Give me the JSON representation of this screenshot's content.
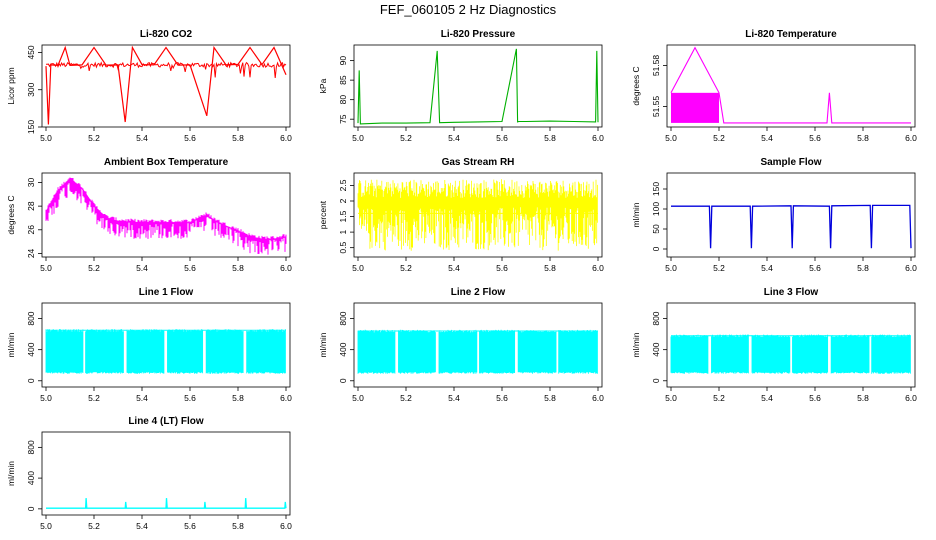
{
  "figure": {
    "title": "FEF_060105  2 Hz Diagnostics"
  },
  "colors": {
    "red": "#ff0000",
    "green": "#00b000",
    "magenta": "#ff00ff",
    "yellow": "#ffff00",
    "blue": "#0000dd",
    "cyan": "#00ffff",
    "axis": "#000000"
  },
  "chart_data": [
    {
      "type": "line",
      "title": "Li-820 CO2",
      "xlabel": "",
      "ylabel": "Licor ppm",
      "color": "#ff0000",
      "xlim": [
        5.0,
        6.0
      ],
      "ylim": [
        150,
        480
      ],
      "xticks": [
        5.0,
        5.2,
        5.4,
        5.6,
        5.8,
        6.0
      ],
      "yticks": [
        150,
        300,
        450
      ],
      "x": [
        5.0,
        5.01,
        5.02,
        5.05,
        5.08,
        5.1,
        5.15,
        5.2,
        5.25,
        5.3,
        5.33,
        5.36,
        5.4,
        5.45,
        5.5,
        5.55,
        5.6,
        5.67,
        5.7,
        5.75,
        5.8,
        5.85,
        5.9,
        5.95,
        6.0
      ],
      "y": [
        395,
        160,
        400,
        398,
        470,
        398,
        400,
        470,
        399,
        400,
        170,
        470,
        401,
        400,
        470,
        399,
        400,
        195,
        470,
        400,
        402,
        470,
        401,
        470,
        360
      ]
    },
    {
      "type": "line",
      "title": "Li-820 Pressure",
      "xlabel": "",
      "ylabel": "kPa",
      "color": "#00b000",
      "xlim": [
        5.0,
        6.0
      ],
      "ylim": [
        73,
        94
      ],
      "xticks": [
        5.0,
        5.2,
        5.4,
        5.6,
        5.8,
        6.0
      ],
      "yticks": [
        75,
        80,
        85,
        90
      ],
      "x": [
        5.0,
        5.005,
        5.01,
        5.1,
        5.2,
        5.3,
        5.33,
        5.34,
        5.4,
        5.5,
        5.6,
        5.66,
        5.665,
        5.67,
        5.7,
        5.8,
        5.9,
        5.99,
        5.995,
        6.0
      ],
      "y": [
        74,
        87.5,
        73.8,
        74.0,
        74.0,
        74.1,
        92.5,
        74.1,
        74.2,
        74.3,
        74.4,
        93.0,
        74.3,
        74.4,
        74.4,
        74.5,
        74.4,
        74.3,
        92.5,
        74.2
      ]
    },
    {
      "type": "line",
      "title": "Li-820 Temperature",
      "xlabel": "",
      "ylabel": "degrees C",
      "color": "#ff00ff",
      "xlim": [
        5.0,
        6.0
      ],
      "ylim": [
        51.535,
        51.595
      ],
      "xticks": [
        5.0,
        5.2,
        5.4,
        5.6,
        5.8,
        6.0
      ],
      "yticks": [
        51.55,
        51.58
      ],
      "x": [
        5.0,
        5.1,
        5.2,
        5.22,
        5.4,
        5.65,
        5.66,
        5.67,
        5.8,
        6.0
      ],
      "y": [
        51.56,
        51.593,
        51.56,
        51.538,
        51.538,
        51.538,
        51.56,
        51.538,
        51.538,
        51.538
      ]
    },
    {
      "type": "line",
      "title": "Ambient Box Temperature",
      "xlabel": "",
      "ylabel": "degrees C",
      "color": "#ff00ff",
      "xlim": [
        5.0,
        6.0
      ],
      "ylim": [
        23.7,
        30.8
      ],
      "xticks": [
        5.0,
        5.2,
        5.4,
        5.6,
        5.8,
        6.0
      ],
      "yticks": [
        24,
        26,
        28,
        30
      ],
      "x": [
        5.0,
        5.05,
        5.1,
        5.15,
        5.2,
        5.25,
        5.3,
        5.4,
        5.5,
        5.6,
        5.65,
        5.67,
        5.7,
        5.75,
        5.8,
        5.85,
        5.9,
        5.95,
        6.0
      ],
      "y": [
        27.5,
        29.3,
        30.3,
        29.5,
        28.0,
        27.0,
        26.7,
        26.6,
        26.6,
        26.6,
        27.1,
        27.2,
        26.8,
        26.3,
        25.9,
        25.4,
        25.2,
        25.2,
        25.4
      ]
    },
    {
      "type": "line",
      "title": "Gas Stream RH",
      "xlabel": "",
      "ylabel": "percent",
      "color": "#ffff00",
      "xlim": [
        5.0,
        6.0
      ],
      "ylim": [
        0.2,
        2.9
      ],
      "xticks": [
        5.0,
        5.2,
        5.4,
        5.6,
        5.8,
        6.0
      ],
      "yticks": [
        0.5,
        1.0,
        1.5,
        2.0,
        2.5
      ],
      "x": [
        5.0,
        5.25,
        5.5,
        5.75,
        6.0
      ],
      "y": [
        1.6,
        1.6,
        1.6,
        1.6,
        1.6
      ]
    },
    {
      "type": "line",
      "title": "Sample Flow",
      "xlabel": "",
      "ylabel": "ml/min",
      "color": "#0000dd",
      "xlim": [
        5.0,
        6.0
      ],
      "ylim": [
        -20,
        190
      ],
      "xticks": [
        5.0,
        5.2,
        5.4,
        5.6,
        5.8,
        6.0
      ],
      "yticks": [
        0,
        50,
        100,
        150
      ],
      "x": [
        5.0,
        5.16,
        5.165,
        5.17,
        5.33,
        5.335,
        5.34,
        5.5,
        5.505,
        5.51,
        5.66,
        5.665,
        5.67,
        5.83,
        5.835,
        5.84,
        5.995,
        6.0
      ],
      "y": [
        107,
        107,
        2,
        107,
        107,
        2,
        107,
        108,
        2,
        108,
        107,
        2,
        108,
        109,
        2,
        109,
        109,
        2
      ]
    },
    {
      "type": "line",
      "title": "Line 1 Flow",
      "xlabel": "",
      "ylabel": "ml/min",
      "color": "#00ffff",
      "xlim": [
        5.0,
        6.0
      ],
      "ylim": [
        -80,
        1000
      ],
      "xticks": [
        5.0,
        5.2,
        5.4,
        5.6,
        5.8,
        6.0
      ],
      "yticks": [
        0,
        400,
        800
      ],
      "band": [
        100,
        650
      ],
      "gaps": [
        5.16,
        5.33,
        5.5,
        5.66,
        5.83
      ],
      "x": [
        5.0,
        6.0
      ],
      "y": [
        650,
        650
      ]
    },
    {
      "type": "line",
      "title": "Line 2 Flow",
      "xlabel": "",
      "ylabel": "ml/min",
      "color": "#00ffff",
      "xlim": [
        5.0,
        6.0
      ],
      "ylim": [
        -80,
        1000
      ],
      "xticks": [
        5.0,
        5.2,
        5.4,
        5.6,
        5.8,
        6.0
      ],
      "yticks": [
        0,
        400,
        800
      ],
      "band": [
        100,
        640
      ],
      "gaps": [
        5.16,
        5.33,
        5.5,
        5.66,
        5.83
      ],
      "x": [
        5.0,
        6.0
      ],
      "y": [
        640,
        640
      ]
    },
    {
      "type": "line",
      "title": "Line 3 Flow",
      "xlabel": "",
      "ylabel": "ml/min",
      "color": "#00ffff",
      "xlim": [
        5.0,
        6.0
      ],
      "ylim": [
        -80,
        1000
      ],
      "xticks": [
        5.0,
        5.2,
        5.4,
        5.6,
        5.8,
        6.0
      ],
      "yticks": [
        0,
        400,
        800
      ],
      "band": [
        100,
        580
      ],
      "gaps": [
        5.16,
        5.33,
        5.5,
        5.66,
        5.83
      ],
      "x": [
        5.0,
        6.0
      ],
      "y": [
        580,
        580
      ]
    },
    {
      "type": "line",
      "title": "Line 4 (LT) Flow",
      "xlabel": "",
      "ylabel": "ml/min",
      "color": "#00ffff",
      "xlim": [
        5.0,
        6.0
      ],
      "ylim": [
        -80,
        1000
      ],
      "xticks": [
        5.0,
        5.2,
        5.4,
        5.6,
        5.8,
        6.0
      ],
      "yticks": [
        0,
        400,
        800
      ],
      "x": [
        5.0,
        5.165,
        5.167,
        5.17,
        5.33,
        5.332,
        5.335,
        5.5,
        5.502,
        5.505,
        5.66,
        5.662,
        5.665,
        5.83,
        5.832,
        5.835,
        5.995,
        5.997,
        6.0
      ],
      "y": [
        8,
        8,
        140,
        8,
        8,
        90,
        8,
        8,
        140,
        8,
        8,
        90,
        8,
        8,
        140,
        8,
        8,
        90,
        8
      ]
    }
  ]
}
